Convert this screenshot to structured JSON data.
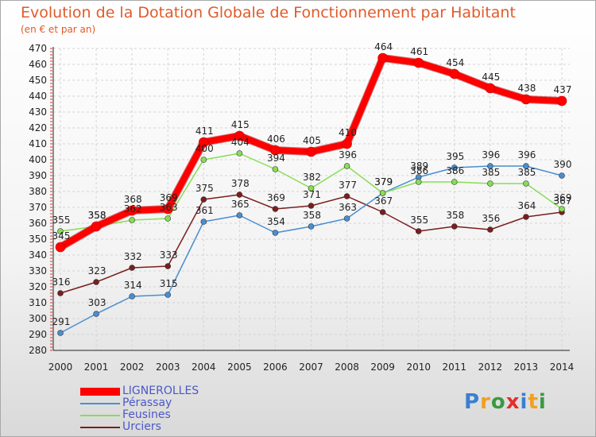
{
  "header": {
    "title": "Evolution de la Dotation Globale de Fonctionnement par Habitant",
    "subtitle": "(en € et par an)"
  },
  "logo": {
    "text": "Proxiti",
    "letters": [
      "P",
      "r",
      "o",
      "x",
      "i",
      "t",
      "i"
    ]
  },
  "chart_data": {
    "type": "line",
    "title": "Evolution de la Dotation Globale de Fonctionnement par Habitant",
    "subtitle": "(en € et par an)",
    "categories": [
      "2000",
      "2001",
      "2002",
      "2003",
      "2004",
      "2005",
      "2006",
      "2007",
      "2008",
      "2009",
      "2010",
      "2011",
      "2012",
      "2013",
      "2014"
    ],
    "ylim": [
      280,
      470
    ],
    "yticks": [
      280,
      290,
      300,
      310,
      320,
      330,
      340,
      350,
      360,
      370,
      380,
      390,
      400,
      410,
      420,
      430,
      440,
      450,
      460,
      470
    ],
    "grid": true,
    "legend_position": "bottom-left",
    "series": [
      {
        "name": "LIGNEROLLES",
        "color": "#ff0000",
        "values": [
          345,
          358,
          368,
          369,
          411,
          415,
          406,
          405,
          410,
          464,
          461,
          454,
          445,
          438,
          437
        ]
      },
      {
        "name": "Pérassay",
        "color": "#4a8ed0",
        "values": [
          291,
          303,
          314,
          315,
          361,
          365,
          354,
          358,
          363,
          379,
          389,
          395,
          396,
          396,
          390
        ]
      },
      {
        "name": "Feusines",
        "color": "#88dd55",
        "values": [
          355,
          358,
          362,
          363,
          400,
          404,
          394,
          382,
          396,
          379,
          386,
          386,
          385,
          385,
          369
        ]
      },
      {
        "name": "Urciers",
        "color": "#7a1e1e",
        "values": [
          316,
          323,
          332,
          333,
          375,
          378,
          369,
          371,
          377,
          367,
          355,
          358,
          356,
          364,
          367
        ]
      }
    ]
  }
}
